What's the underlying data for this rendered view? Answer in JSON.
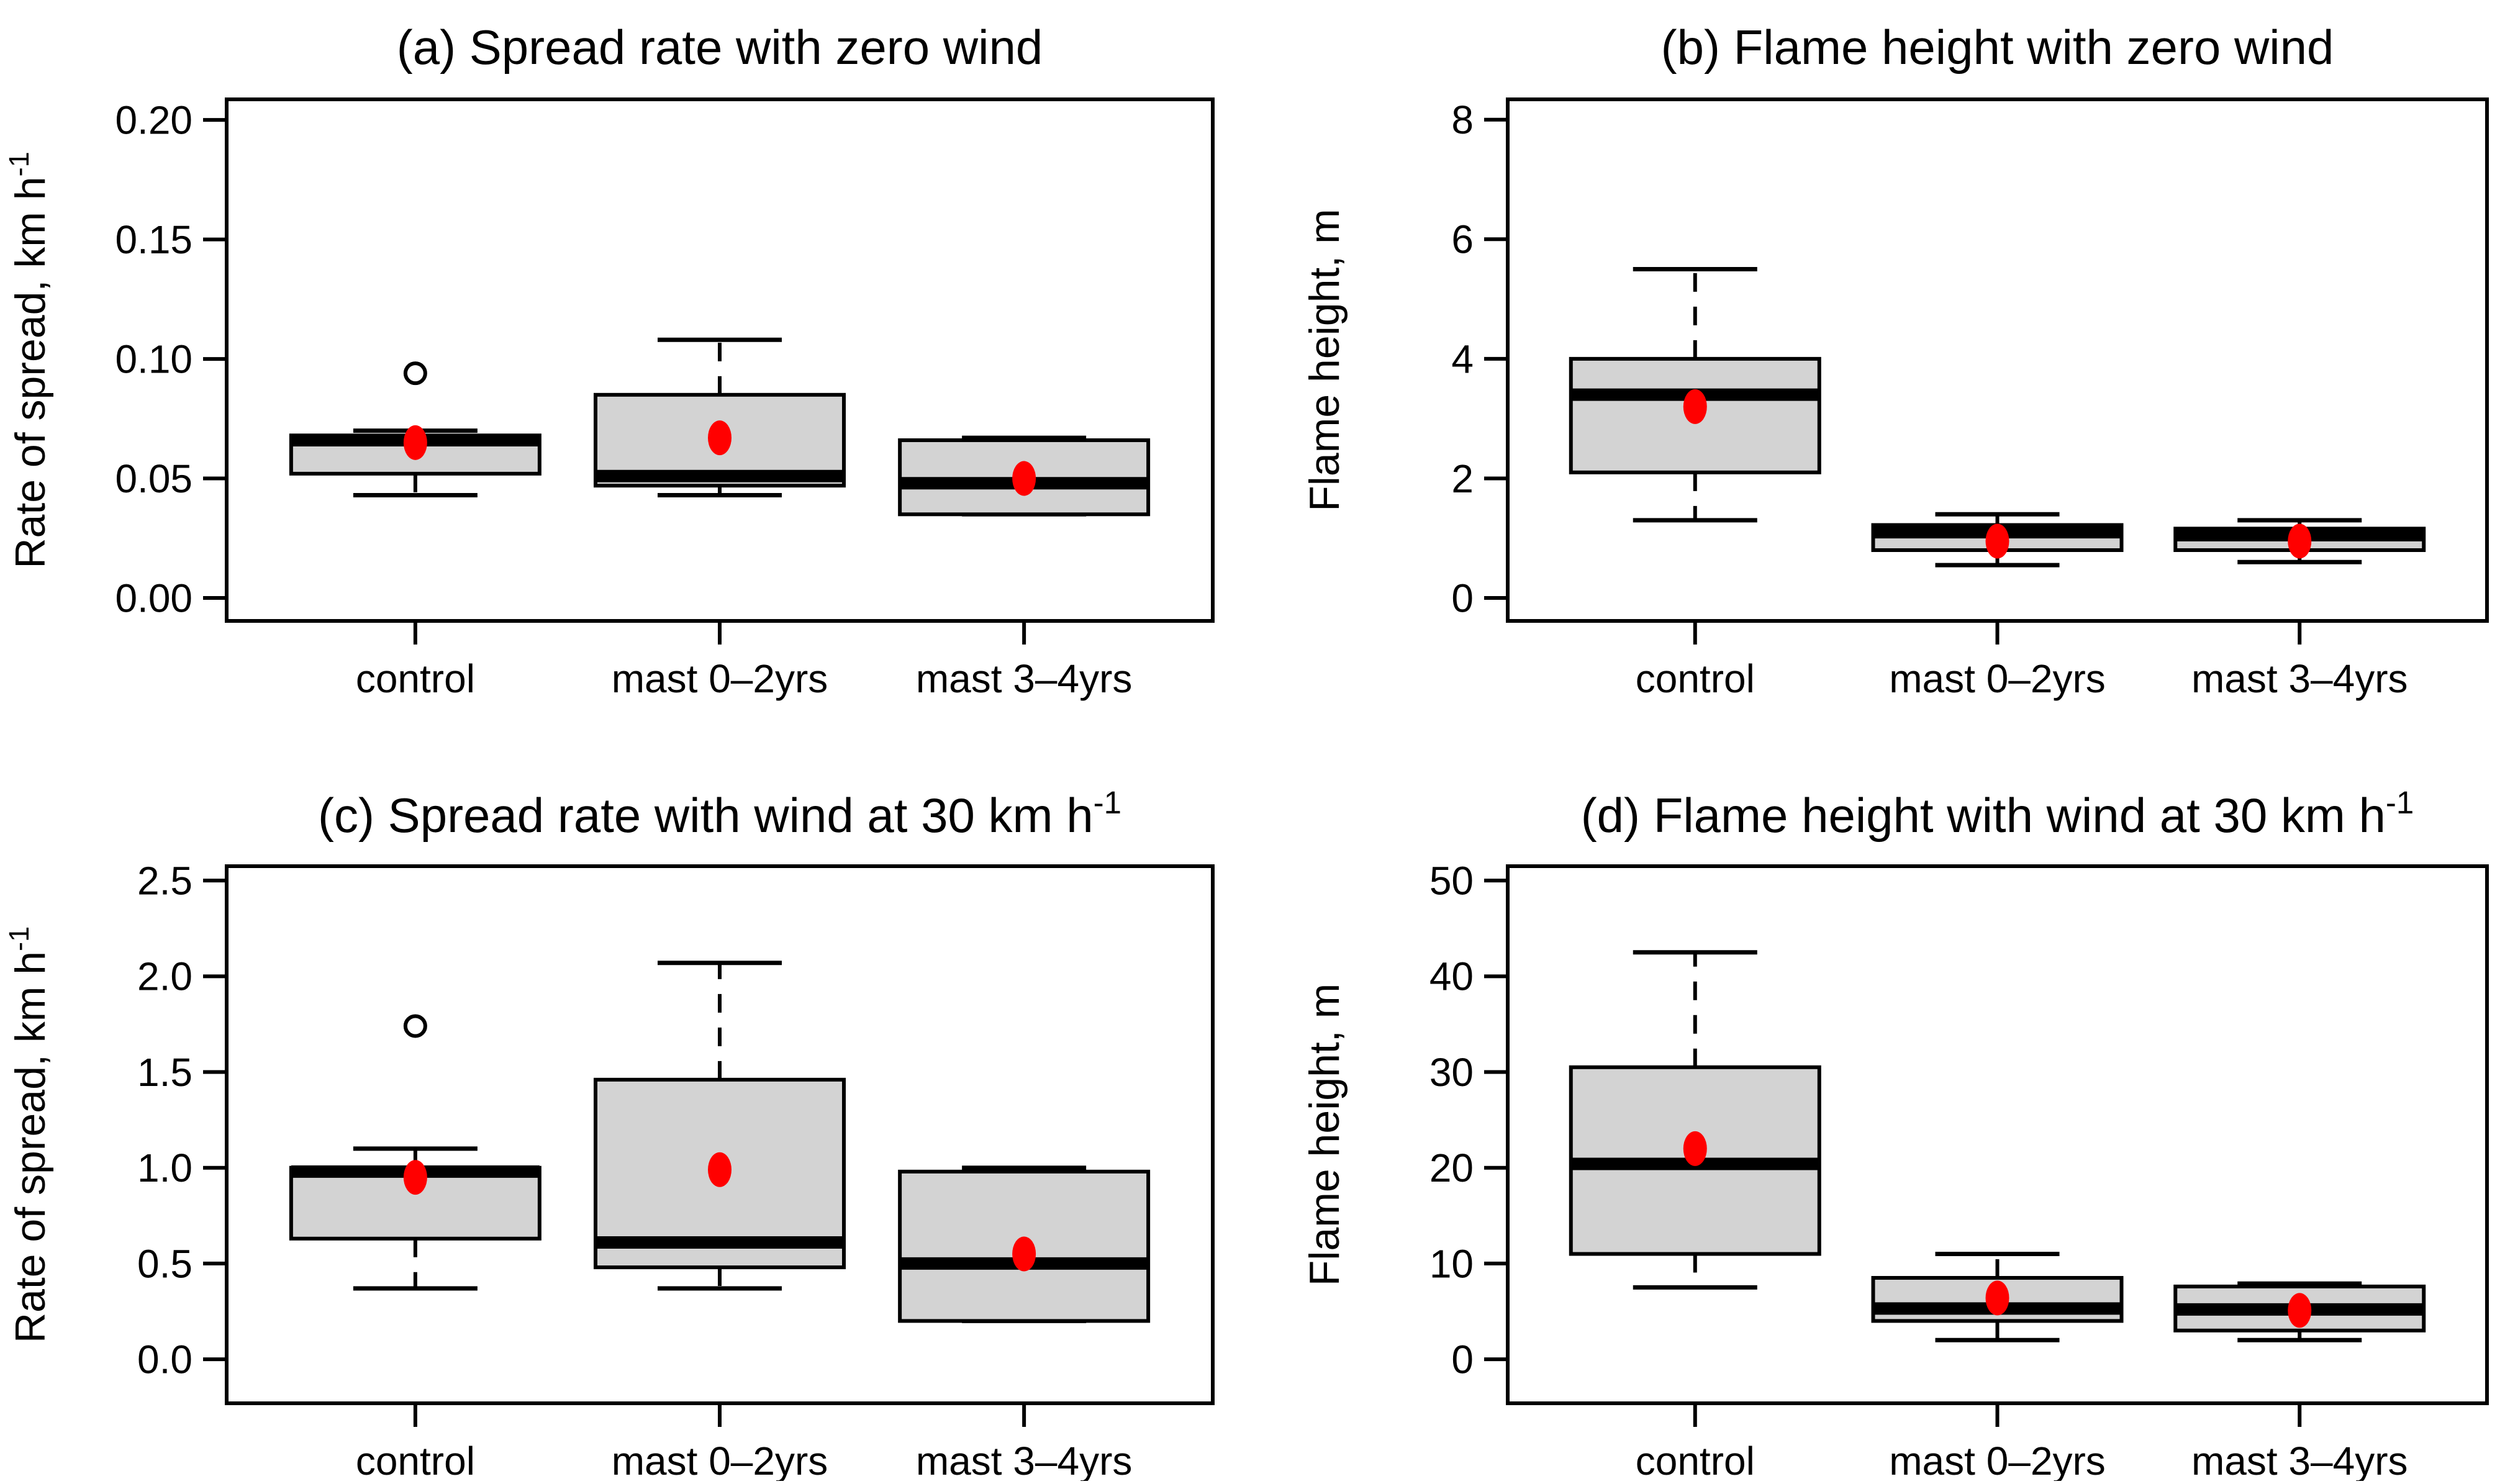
{
  "figure": {
    "background": "#ffffff",
    "kind": "2x2 grid of R-style boxplot panels with mean dots"
  },
  "colors": {
    "box_fill": "#d3d3d3",
    "box_stroke": "#000000",
    "median": "#000000",
    "whisker": "#000000",
    "mean_dot": "#ff0000",
    "outlier_stroke": "#000000",
    "frame": "#000000",
    "text": "#000000",
    "background": "#ffffff"
  },
  "chart_data": [
    {
      "id": "a",
      "type": "boxplot",
      "title": "(a) Spread rate with zero wind",
      "title_sup": "",
      "ylabel": "Rate of spread, km h",
      "ylabel_sup": "-1",
      "grid": false,
      "legend": null,
      "ylim": [
        -0.0096,
        0.2086
      ],
      "yticks": [
        {
          "v": 0.0,
          "label": "0.00"
        },
        {
          "v": 0.05,
          "label": "0.05"
        },
        {
          "v": 0.1,
          "label": "0.10"
        },
        {
          "v": 0.15,
          "label": "0.15"
        },
        {
          "v": 0.2,
          "label": "0.20"
        }
      ],
      "categories": [
        "control",
        "mast 0–2yrs",
        "mast 3–4yrs"
      ],
      "groups": [
        {
          "label": "control",
          "min": 0.043,
          "q1": 0.052,
          "median": 0.066,
          "q3": 0.068,
          "max": 0.07,
          "mean": 0.065,
          "outliers": [
            0.094
          ]
        },
        {
          "label": "mast 0–2yrs",
          "min": 0.043,
          "q1": 0.047,
          "median": 0.051,
          "q3": 0.085,
          "max": 0.108,
          "mean": 0.067,
          "outliers": []
        },
        {
          "label": "mast 3–4yrs",
          "min": 0.035,
          "q1": 0.035,
          "median": 0.048,
          "q3": 0.066,
          "max": 0.067,
          "mean": 0.05,
          "outliers": []
        }
      ]
    },
    {
      "id": "b",
      "type": "boxplot",
      "title": "(b) Flame height with zero wind",
      "title_sup": "",
      "ylabel": "Flame height, m",
      "ylabel_sup": "",
      "grid": false,
      "legend": null,
      "ylim": [
        -0.384,
        8.34
      ],
      "yticks": [
        {
          "v": 0,
          "label": "0"
        },
        {
          "v": 2,
          "label": "2"
        },
        {
          "v": 4,
          "label": "4"
        },
        {
          "v": 6,
          "label": "6"
        },
        {
          "v": 8,
          "label": "8"
        }
      ],
      "categories": [
        "control",
        "mast 0–2yrs",
        "mast 3–4yrs"
      ],
      "groups": [
        {
          "label": "control",
          "min": 1.3,
          "q1": 2.1,
          "median": 3.4,
          "q3": 4.0,
          "max": 5.5,
          "mean": 3.2,
          "outliers": []
        },
        {
          "label": "mast 0–2yrs",
          "min": 0.55,
          "q1": 0.8,
          "median": 1.1,
          "q3": 1.22,
          "max": 1.4,
          "mean": 0.95,
          "outliers": []
        },
        {
          "label": "mast 3–4yrs",
          "min": 0.6,
          "q1": 0.8,
          "median": 1.05,
          "q3": 1.16,
          "max": 1.3,
          "mean": 0.95,
          "outliers": []
        }
      ]
    },
    {
      "id": "c",
      "type": "boxplot",
      "title": "(c) Spread rate with wind at 30 km h",
      "title_sup": "-1",
      "ylabel": "Rate of spread, km h",
      "ylabel_sup": "-1",
      "grid": false,
      "legend": null,
      "ylim": [
        -0.23,
        2.575
      ],
      "yticks": [
        {
          "v": 0.0,
          "label": "0.0"
        },
        {
          "v": 0.5,
          "label": "0.5"
        },
        {
          "v": 1.0,
          "label": "1.0"
        },
        {
          "v": 1.5,
          "label": "1.5"
        },
        {
          "v": 2.0,
          "label": "2.0"
        },
        {
          "v": 2.5,
          "label": "2.5"
        }
      ],
      "categories": [
        "control",
        "mast 0–2yrs",
        "mast 3–4yrs"
      ],
      "groups": [
        {
          "label": "control",
          "min": 0.37,
          "q1": 0.63,
          "median": 0.98,
          "q3": 1.0,
          "max": 1.1,
          "mean": 0.95,
          "outliers": [
            1.74
          ]
        },
        {
          "label": "mast 0–2yrs",
          "min": 0.37,
          "q1": 0.48,
          "median": 0.61,
          "q3": 1.46,
          "max": 2.07,
          "mean": 0.99,
          "outliers": []
        },
        {
          "label": "mast 3–4yrs",
          "min": 0.2,
          "q1": 0.2,
          "median": 0.5,
          "q3": 0.98,
          "max": 1.0,
          "mean": 0.55,
          "outliers": []
        }
      ]
    },
    {
      "id": "d",
      "type": "boxplot",
      "title": "(d) Flame height with wind at 30 km h",
      "title_sup": "-1",
      "ylabel": "Flame height, m",
      "ylabel_sup": "",
      "grid": false,
      "legend": null,
      "ylim": [
        -4.6,
        51.5
      ],
      "yticks": [
        {
          "v": 0,
          "label": "0"
        },
        {
          "v": 10,
          "label": "10"
        },
        {
          "v": 20,
          "label": "20"
        },
        {
          "v": 30,
          "label": "30"
        },
        {
          "v": 40,
          "label": "40"
        },
        {
          "v": 50,
          "label": "50"
        }
      ],
      "categories": [
        "control",
        "mast 0–2yrs",
        "mast 3–4yrs"
      ],
      "groups": [
        {
          "label": "control",
          "min": 7.5,
          "q1": 11.0,
          "median": 20.4,
          "q3": 30.5,
          "max": 42.5,
          "mean": 22.0,
          "outliers": []
        },
        {
          "label": "mast 0–2yrs",
          "min": 2.0,
          "q1": 4.0,
          "median": 5.3,
          "q3": 8.5,
          "max": 11.0,
          "mean": 6.4,
          "outliers": []
        },
        {
          "label": "mast 3–4yrs",
          "min": 2.0,
          "q1": 3.0,
          "median": 5.2,
          "q3": 7.6,
          "max": 7.9,
          "mean": 5.1,
          "outliers": []
        }
      ]
    }
  ]
}
